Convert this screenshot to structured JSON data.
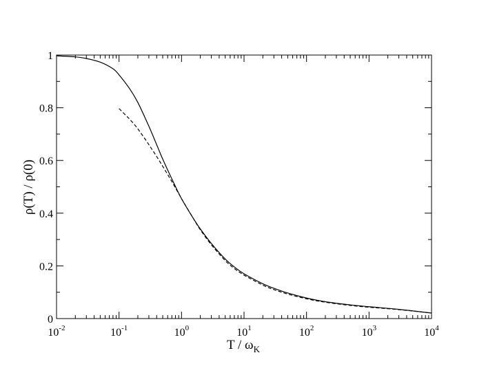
{
  "chart_data": {
    "type": "line",
    "title": "",
    "xlabel": {
      "main": "T / ω",
      "sub": "K"
    },
    "ylabel": "ρ(T) / ρ(0)",
    "x_scale": "log",
    "xlim": [
      0.01,
      10000
    ],
    "ylim": [
      0,
      1
    ],
    "grid": false,
    "legend": "none",
    "x_ticks": [
      {
        "value": 0.01,
        "base": "10",
        "exp": "-2"
      },
      {
        "value": 0.1,
        "base": "10",
        "exp": "-1"
      },
      {
        "value": 1,
        "base": "10",
        "exp": "0"
      },
      {
        "value": 10,
        "base": "10",
        "exp": "1"
      },
      {
        "value": 100,
        "base": "10",
        "exp": "2"
      },
      {
        "value": 1000,
        "base": "10",
        "exp": "3"
      },
      {
        "value": 10000,
        "base": "10",
        "exp": "4"
      }
    ],
    "y_ticks": [
      {
        "value": 0,
        "label": "0"
      },
      {
        "value": 0.2,
        "label": "0.2"
      },
      {
        "value": 0.4,
        "label": "0.4"
      },
      {
        "value": 0.6,
        "label": "0.6"
      },
      {
        "value": 0.8,
        "label": "0.8"
      },
      {
        "value": 1,
        "label": "1"
      }
    ],
    "series": [
      {
        "style": "solid",
        "color": "#000000",
        "x": [
          0.01,
          0.02,
          0.03,
          0.05,
          0.08,
          0.1,
          0.15,
          0.2,
          0.3,
          0.4,
          0.5,
          0.7,
          1,
          1.5,
          2,
          3,
          5,
          7,
          10,
          20,
          30,
          50,
          100,
          200,
          500,
          1000,
          3000,
          10000
        ],
        "y": [
          0.997,
          0.993,
          0.987,
          0.973,
          0.948,
          0.925,
          0.87,
          0.82,
          0.73,
          0.66,
          0.605,
          0.53,
          0.455,
          0.385,
          0.34,
          0.285,
          0.226,
          0.196,
          0.17,
          0.132,
          0.115,
          0.097,
          0.078,
          0.064,
          0.052,
          0.045,
          0.035,
          0.021
        ]
      },
      {
        "style": "dashed",
        "color": "#000000",
        "x": [
          0.1,
          0.13,
          0.15,
          0.2,
          0.3,
          0.4,
          0.5,
          0.7,
          1,
          1.5,
          2,
          3,
          5,
          7,
          10,
          20,
          30,
          50,
          100,
          200,
          500,
          1000,
          3000,
          10000
        ],
        "y": [
          0.797,
          0.77,
          0.755,
          0.72,
          0.66,
          0.615,
          0.578,
          0.52,
          0.455,
          0.385,
          0.337,
          0.28,
          0.22,
          0.19,
          0.165,
          0.127,
          0.11,
          0.093,
          0.075,
          0.062,
          0.05,
          0.043,
          0.034,
          0.021
        ]
      }
    ]
  }
}
